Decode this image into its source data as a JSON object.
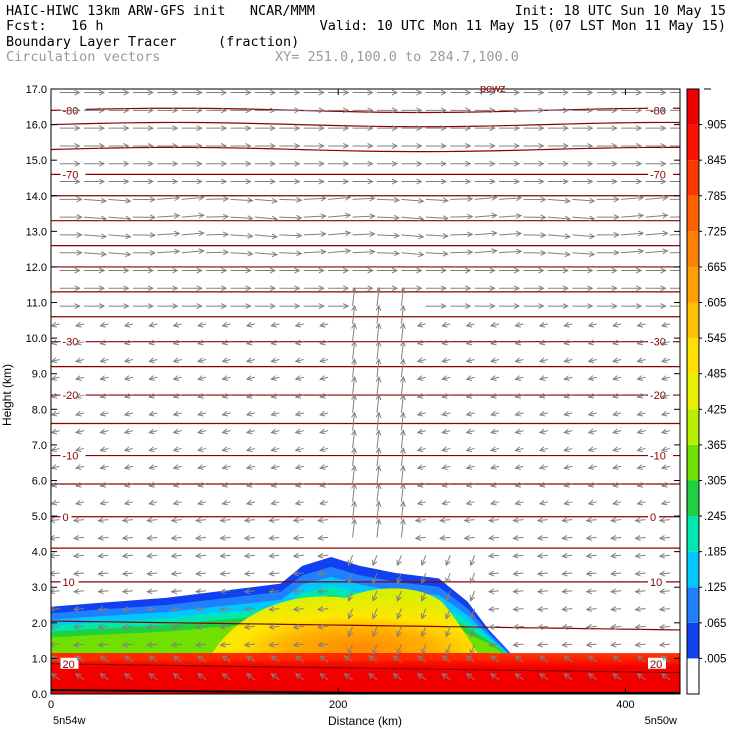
{
  "header": {
    "line1_left": "HAIC-HIWC 13km ARW-GFS init   NCAR/MMM",
    "line1_right": "Init: 18 UTC Sun 10 May 15",
    "line2_left": "Fcst:   16 h",
    "line2_right": "Valid: 10 UTC Mon 11 May 15 (07 LST Mon 11 May 15)",
    "field_label": "Boundary Layer Tracer",
    "field_units": "(fraction)",
    "vector_label": "Circulation vectors",
    "xy_label": "XY= 251.0,100.0 to 284.7,100.0"
  },
  "chart_data": {
    "type": "heatmap",
    "ylabel": "Height (km)",
    "xlabel": "Distance (km)",
    "xlim": [
      0,
      438
    ],
    "ylim": [
      0,
      17
    ],
    "y_ticks": [
      "0.0",
      "1.0",
      "2.0",
      "3.0",
      "4.0",
      "5.0",
      "6.0",
      "7.0",
      "8.0",
      "9.0",
      "10.0",
      "11.0",
      "12.0",
      "13.0",
      "14.0",
      "15.0",
      "16.0",
      "17.0"
    ],
    "x_ticks": [
      "0",
      "200",
      "400"
    ],
    "x_end_labels": {
      "left": "5n54w",
      "right": "5n50w"
    },
    "top_label": "pewz",
    "colorbar": {
      "labels": [
        ".005",
        ".065",
        ".125",
        ".185",
        ".245",
        ".305",
        ".365",
        ".425",
        ".485",
        ".545",
        ".605",
        ".665",
        ".725",
        ".785",
        ".845",
        ".905"
      ],
      "colors": [
        "#ffffff",
        "#1040f0",
        "#2080ff",
        "#00c8ff",
        "#00e8b0",
        "#20d040",
        "#70e000",
        "#b8ee00",
        "#e8f000",
        "#ffe000",
        "#ffc000",
        "#ffa000",
        "#ff8000",
        "#ff6000",
        "#ff3800",
        "#ff1000",
        "#f00000"
      ]
    },
    "temperature_contours": {
      "color": "#8b0000",
      "labels": [
        {
          "value": "-80",
          "height_km": 16.4
        },
        {
          "value": "-70",
          "height_km": 14.6
        },
        {
          "value": "-30",
          "height_km": 9.9
        },
        {
          "value": "-20",
          "height_km": 8.4
        },
        {
          "value": "-10",
          "height_km": 6.7
        },
        {
          "value": "0",
          "height_km": 4.98
        },
        {
          "value": "10",
          "height_km": 3.15
        },
        {
          "value": "20",
          "height_km": 0.85
        }
      ]
    },
    "tracer_region": {
      "top_km_by_distance": [
        [
          0,
          2.45
        ],
        [
          30,
          2.55
        ],
        [
          80,
          2.7
        ],
        [
          120,
          2.9
        ],
        [
          160,
          3.1
        ],
        [
          175,
          3.6
        ],
        [
          195,
          3.85
        ],
        [
          215,
          3.6
        ],
        [
          240,
          3.4
        ],
        [
          270,
          3.25
        ],
        [
          290,
          2.6
        ],
        [
          305,
          1.8
        ],
        [
          320,
          1.15
        ],
        [
          360,
          1.05
        ],
        [
          438,
          1.1
        ]
      ]
    }
  }
}
